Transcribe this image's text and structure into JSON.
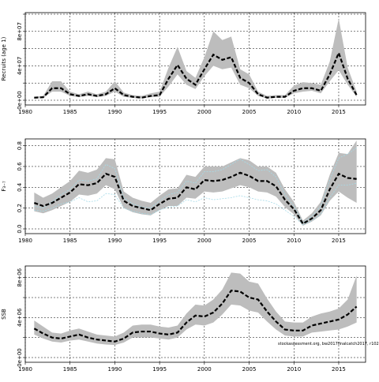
{
  "chart_data": [
    {
      "type": "line",
      "ylabel": "Recruits (age 1)",
      "xlim": [
        1980,
        2018
      ],
      "ylim": [
        0,
        100000000
      ],
      "yticks": [
        0,
        20000000,
        40000000,
        60000000,
        80000000,
        100000000
      ],
      "yticklabels": [
        "0e+00",
        "",
        "4e+07",
        "",
        "8e+07",
        ""
      ],
      "xticks": [
        1980,
        1985,
        1990,
        1995,
        2000,
        2005,
        2010,
        2015
      ],
      "xticklabels": [
        "1980",
        "1985",
        "1990",
        "1995",
        "2000",
        "2005",
        "2010",
        "2015"
      ],
      "grid": true,
      "band_color": "#bdbdbd",
      "line_color": "#000000",
      "x": [
        1981,
        1982,
        1983,
        1984,
        1985,
        1986,
        1987,
        1988,
        1989,
        1990,
        1991,
        1992,
        1993,
        1994,
        1995,
        1996,
        1997,
        1998,
        1999,
        2000,
        2001,
        2002,
        2003,
        2004,
        2005,
        2006,
        2007,
        2008,
        2009,
        2010,
        2011,
        2012,
        2013,
        2014,
        2015,
        2016,
        2017
      ],
      "series": [
        {
          "estimate": [
            3000000,
            3500000,
            14000000,
            14000000,
            7000000,
            5000000,
            7000000,
            5000000,
            7000000,
            14000000,
            6000000,
            4000000,
            3000000,
            5000000,
            6000000,
            25000000,
            41000000,
            25000000,
            18000000,
            36000000,
            53000000,
            47000000,
            50000000,
            26000000,
            20000000,
            7000000,
            3000000,
            4000000,
            4000000,
            11000000,
            14000000,
            14000000,
            11000000,
            30000000,
            55000000,
            25000000,
            6000000
          ],
          "lower": [
            2000000,
            2500000,
            10000000,
            10000000,
            5000000,
            3500000,
            5000000,
            3500000,
            5000000,
            10000000,
            4000000,
            2800000,
            2000000,
            3500000,
            4000000,
            16000000,
            30000000,
            18000000,
            13000000,
            28000000,
            40000000,
            36000000,
            38000000,
            18000000,
            14000000,
            5000000,
            2000000,
            2800000,
            2800000,
            8000000,
            10000000,
            11000000,
            8000000,
            22000000,
            35000000,
            18000000,
            4000000
          ],
          "upper": [
            4000000,
            5000000,
            22000000,
            22000000,
            10000000,
            7000000,
            10000000,
            7000000,
            10000000,
            22000000,
            9000000,
            6000000,
            5000000,
            8000000,
            10000000,
            38000000,
            62000000,
            34000000,
            26000000,
            50000000,
            80000000,
            70000000,
            74000000,
            36000000,
            30000000,
            10000000,
            5000000,
            6000000,
            6000000,
            17000000,
            21000000,
            20000000,
            18000000,
            45000000,
            95000000,
            38000000,
            10000000
          ]
        }
      ]
    },
    {
      "type": "line",
      "ylabel": "F₃₋₇",
      "xlim": [
        1980,
        2018
      ],
      "ylim": [
        0,
        0.85
      ],
      "yticks": [
        0,
        0.2,
        0.4,
        0.6,
        0.8
      ],
      "yticklabels": [
        "0.0",
        "0.2",
        "0.4",
        "0.6",
        "0.8"
      ],
      "xticks": [
        1980,
        1985,
        1990,
        1995,
        2000,
        2005,
        2010,
        2015
      ],
      "xticklabels": [
        "1980",
        "1985",
        "1990",
        "1995",
        "2000",
        "2005",
        "2010",
        "2015"
      ],
      "grid": true,
      "band_color": "#bdbdbd",
      "line_color": "#000000",
      "retro_color": "#a6dbe8",
      "x": [
        1981,
        1982,
        1983,
        1984,
        1985,
        1986,
        1987,
        1988,
        1989,
        1990,
        1991,
        1992,
        1993,
        1994,
        1995,
        1996,
        1997,
        1998,
        1999,
        2000,
        2001,
        2002,
        2003,
        2004,
        2005,
        2006,
        2007,
        2008,
        2009,
        2010,
        2011,
        2012,
        2013,
        2014,
        2015,
        2016,
        2017
      ],
      "series": [
        {
          "estimate": [
            0.25,
            0.22,
            0.25,
            0.3,
            0.35,
            0.43,
            0.42,
            0.44,
            0.53,
            0.5,
            0.27,
            0.22,
            0.2,
            0.18,
            0.24,
            0.29,
            0.3,
            0.4,
            0.38,
            0.47,
            0.46,
            0.47,
            0.5,
            0.54,
            0.51,
            0.46,
            0.46,
            0.41,
            0.28,
            0.19,
            0.05,
            0.1,
            0.18,
            0.38,
            0.53,
            0.49,
            0.48
          ],
          "lower": [
            0.17,
            0.15,
            0.18,
            0.22,
            0.26,
            0.33,
            0.32,
            0.34,
            0.42,
            0.38,
            0.2,
            0.16,
            0.14,
            0.13,
            0.18,
            0.22,
            0.22,
            0.3,
            0.29,
            0.36,
            0.35,
            0.36,
            0.39,
            0.42,
            0.4,
            0.36,
            0.35,
            0.31,
            0.21,
            0.14,
            0.03,
            0.07,
            0.13,
            0.27,
            0.36,
            0.3,
            0.25
          ],
          "upper": [
            0.35,
            0.3,
            0.34,
            0.4,
            0.46,
            0.56,
            0.54,
            0.57,
            0.68,
            0.67,
            0.36,
            0.3,
            0.27,
            0.25,
            0.32,
            0.38,
            0.39,
            0.52,
            0.5,
            0.6,
            0.6,
            0.6,
            0.64,
            0.68,
            0.66,
            0.6,
            0.6,
            0.54,
            0.38,
            0.26,
            0.08,
            0.15,
            0.26,
            0.52,
            0.73,
            0.72,
            0.85
          ]
        },
        {
          "name": "",
          "values": [
            0.22,
            0.2,
            0.26,
            0.33,
            0.38,
            0.47,
            0.46,
            0.48,
            0.62,
            0.58,
            0.3,
            0.24,
            0.21,
            0.2,
            0.27,
            0.33,
            0.35,
            0.46,
            0.44,
            0.55,
            0.55,
            0.57,
            0.62,
            0.67,
            0.62,
            0.56,
            0.57,
            0.5,
            0.33,
            0.22,
            0.06,
            0.12,
            0.22,
            0.47,
            0.68,
            0.72,
            0.78
          ]
        },
        {
          "name": "",
          "values": [
            0.18,
            0.17,
            0.2,
            0.24,
            0.26,
            0.3,
            0.26,
            0.27,
            0.34,
            0.33,
            0.2,
            0.17,
            0.15,
            0.14,
            0.18,
            0.21,
            0.22,
            0.28,
            0.26,
            0.3,
            0.28,
            0.29,
            0.3,
            0.32,
            0.3,
            0.28,
            0.27,
            0.24,
            0.18,
            0.12,
            0.04,
            0.08,
            0.14,
            0.3,
            0.42,
            0.42,
            0.44
          ]
        }
      ]
    },
    {
      "type": "line",
      "ylabel": "SSB",
      "xlim": [
        1980,
        2018
      ],
      "ylim": [
        0,
        9000000
      ],
      "yticks": [
        0,
        2000000,
        4000000,
        6000000,
        8000000
      ],
      "yticklabels": [
        "0e+00",
        "",
        "4e+06",
        "",
        "8e+06"
      ],
      "xticks": [
        1980,
        1985,
        1990,
        1995,
        2000,
        2005,
        2010,
        2015
      ],
      "xticklabels": [
        "1980",
        "1985",
        "1990",
        "1995",
        "2000",
        "2005",
        "2010",
        "2015"
      ],
      "grid": true,
      "band_color": "#bdbdbd",
      "line_color": "#000000",
      "annotation": "stockassessment.org, bw2017finalcatch2017, r102",
      "x": [
        1981,
        1982,
        1983,
        1984,
        1985,
        1986,
        1987,
        1988,
        1989,
        1990,
        1991,
        1992,
        1993,
        1994,
        1995,
        1996,
        1997,
        1998,
        1999,
        2000,
        2001,
        2002,
        2003,
        2004,
        2005,
        2006,
        2007,
        2008,
        2009,
        2010,
        2011,
        2012,
        2013,
        2014,
        2015,
        2016,
        2017
      ],
      "series": [
        {
          "estimate": [
            2900000,
            2400000,
            2000000,
            1900000,
            2100000,
            2300000,
            2000000,
            1800000,
            1700000,
            1600000,
            1900000,
            2500000,
            2600000,
            2600000,
            2400000,
            2300000,
            2500000,
            3500000,
            4200000,
            4100000,
            4500000,
            5400000,
            6700000,
            6600000,
            6000000,
            5800000,
            4600000,
            3600000,
            2800000,
            2700000,
            2700000,
            3200000,
            3400000,
            3600000,
            3800000,
            4300000,
            5100000
          ],
          "lower": [
            2300000,
            1900000,
            1600000,
            1500000,
            1700000,
            1800000,
            1600000,
            1400000,
            1300000,
            1250000,
            1500000,
            2000000,
            2000000,
            2000000,
            1900000,
            1800000,
            2000000,
            2800000,
            3300000,
            3200000,
            3500000,
            4300000,
            5300000,
            5200000,
            4700000,
            4500000,
            3600000,
            2800000,
            2200000,
            2100000,
            2100000,
            2500000,
            2600000,
            2700000,
            2800000,
            3100000,
            3500000
          ],
          "upper": [
            3700000,
            3100000,
            2500000,
            2400000,
            2700000,
            2900000,
            2600000,
            2300000,
            2200000,
            2100000,
            2500000,
            3200000,
            3300000,
            3300000,
            3100000,
            3000000,
            3200000,
            4400000,
            5300000,
            5200000,
            5800000,
            6800000,
            8500000,
            8400000,
            7600000,
            7400000,
            5900000,
            4600000,
            3600000,
            3500000,
            3500000,
            4100000,
            4400000,
            4600000,
            4900000,
            5800000,
            8200000
          ]
        }
      ]
    }
  ]
}
